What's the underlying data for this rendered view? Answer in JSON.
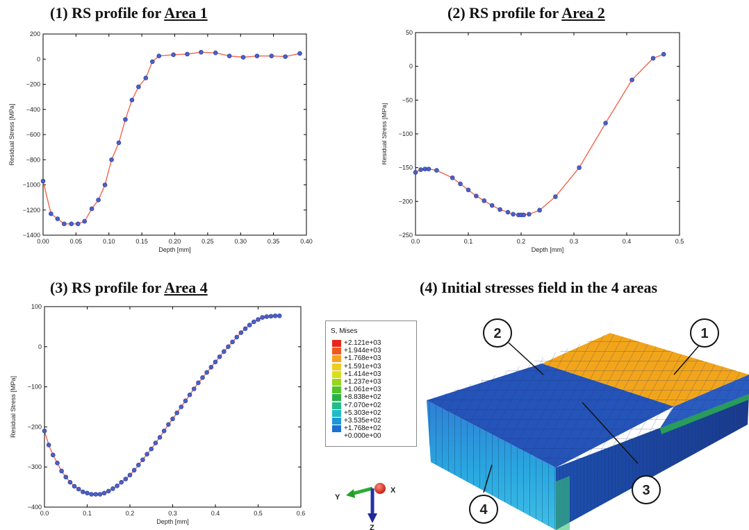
{
  "titles": {
    "p1_prefix": "(1) RS profile for ",
    "p1_area": "Area 1",
    "p2_prefix": "(2) RS profile for ",
    "p2_area": "Area 2",
    "p3_prefix": "(3) RS profile for ",
    "p3_area": "Area 4",
    "p4": "(4) Initial stresses field in the 4 areas"
  },
  "chart_data": [
    {
      "type": "line",
      "title": "(1) RS profile for Area 1",
      "xlabel": "Depth [mm]",
      "ylabel": "Residual Stress [MPa]",
      "xlim": [
        0,
        0.4
      ],
      "ylim": [
        -1400,
        200
      ],
      "xticks": [
        "0.00",
        "0.05",
        "0.10",
        "0.15",
        "0.20",
        "0.25",
        "0.30",
        "0.35",
        "0.40"
      ],
      "yticks": [
        "200",
        "0",
        "−200",
        "−400",
        "−600",
        "−800",
        "−1000",
        "−1200",
        "−1400"
      ],
      "x": [
        0.0,
        0.012,
        0.022,
        0.032,
        0.043,
        0.053,
        0.063,
        0.074,
        0.084,
        0.094,
        0.104,
        0.115,
        0.125,
        0.135,
        0.145,
        0.156,
        0.166,
        0.176,
        0.198,
        0.219,
        0.24,
        0.262,
        0.283,
        0.304,
        0.325,
        0.347,
        0.368,
        0.39
      ],
      "y": [
        -970,
        -1230,
        -1270,
        -1310,
        -1310,
        -1310,
        -1290,
        -1190,
        -1120,
        -1000,
        -800,
        -665,
        -480,
        -325,
        -220,
        -150,
        -20,
        25,
        35,
        40,
        55,
        50,
        25,
        15,
        25,
        25,
        20,
        45
      ]
    },
    {
      "type": "line",
      "title": "(2) RS profile for Area 2",
      "xlabel": "Depth [mm]",
      "ylabel": "Residual Stress [MPa]",
      "xlim": [
        0,
        0.5
      ],
      "ylim": [
        -250,
        50
      ],
      "xticks": [
        "0.0",
        "0.1",
        "0.2",
        "0.3",
        "0.4",
        "0.5"
      ],
      "yticks": [
        "50",
        "0",
        "−50",
        "−100",
        "−150",
        "−200",
        "−250"
      ],
      "x": [
        0.0,
        0.01,
        0.018,
        0.025,
        0.04,
        0.07,
        0.085,
        0.1,
        0.115,
        0.13,
        0.145,
        0.16,
        0.175,
        0.185,
        0.195,
        0.2,
        0.205,
        0.215,
        0.235,
        0.265,
        0.31,
        0.36,
        0.41,
        0.45,
        0.47
      ],
      "y": [
        -157,
        -153,
        -152,
        -152,
        -154,
        -165,
        -174,
        -183,
        -192,
        -199,
        -206,
        -212,
        -216,
        -219,
        -220,
        -220,
        -220,
        -219,
        -213,
        -193,
        -150,
        -84,
        -20,
        12,
        18
      ]
    },
    {
      "type": "line",
      "title": "(3) RS profile for Area 4",
      "xlabel": "Depth [mm]",
      "ylabel": "Residual Stress [MPa]",
      "xlim": [
        0,
        0.6
      ],
      "ylim": [
        -400,
        100
      ],
      "xticks": [
        "0.0",
        "0.1",
        "0.2",
        "0.3",
        "0.4",
        "0.5",
        "0.6"
      ],
      "yticks": [
        "100",
        "0",
        "−100",
        "−200",
        "−300",
        "−400"
      ],
      "x": [
        0.0,
        0.01,
        0.02,
        0.03,
        0.04,
        0.05,
        0.06,
        0.07,
        0.08,
        0.09,
        0.1,
        0.11,
        0.12,
        0.13,
        0.14,
        0.15,
        0.16,
        0.17,
        0.18,
        0.19,
        0.2,
        0.21,
        0.22,
        0.23,
        0.24,
        0.25,
        0.26,
        0.27,
        0.28,
        0.29,
        0.3,
        0.31,
        0.32,
        0.33,
        0.34,
        0.35,
        0.36,
        0.37,
        0.38,
        0.39,
        0.4,
        0.41,
        0.42,
        0.43,
        0.44,
        0.45,
        0.46,
        0.47,
        0.48,
        0.49,
        0.5,
        0.51,
        0.52,
        0.53,
        0.54,
        0.55
      ],
      "y": [
        -210,
        -245,
        -270,
        -290,
        -310,
        -325,
        -338,
        -348,
        -355,
        -362,
        -365,
        -368,
        -368,
        -368,
        -365,
        -360,
        -354,
        -347,
        -338,
        -330,
        -320,
        -308,
        -295,
        -282,
        -268,
        -255,
        -240,
        -226,
        -210,
        -194,
        -180,
        -165,
        -150,
        -135,
        -120,
        -105,
        -90,
        -77,
        -64,
        -51,
        -38,
        -25,
        -12,
        0,
        12,
        24,
        35,
        45,
        54,
        62,
        68,
        73,
        75,
        76,
        77,
        77
      ]
    }
  ],
  "legend": {
    "title": "S, Mises",
    "entries": [
      "+2.121e+03",
      "+1.944e+03",
      "+1.768e+03",
      "+1.591e+03",
      "+1.414e+03",
      "+1.237e+03",
      "+1.061e+03",
      "+8.838e+02",
      "+7.070e+02",
      "+5.303e+02",
      "+3.535e+02",
      "+1.768e+02",
      "+0.000e+00"
    ],
    "colors": [
      "#e8271a",
      "#f05a1e",
      "#f7a320",
      "#efcc22",
      "#d8e01e",
      "#9ad41e",
      "#52c42a",
      "#2ab246",
      "#1fbe8a",
      "#20bcc8",
      "#1c98d8",
      "#1d6fd2",
      "#1a3e9e"
    ]
  },
  "triad": {
    "x": "X",
    "y": "Y",
    "z": "Z"
  },
  "callouts": [
    "1",
    "2",
    "3",
    "4"
  ],
  "style": {
    "line_color": "#f0654f",
    "marker_color": "#4a5fc8",
    "marker_edge": "#2a3a8a"
  }
}
